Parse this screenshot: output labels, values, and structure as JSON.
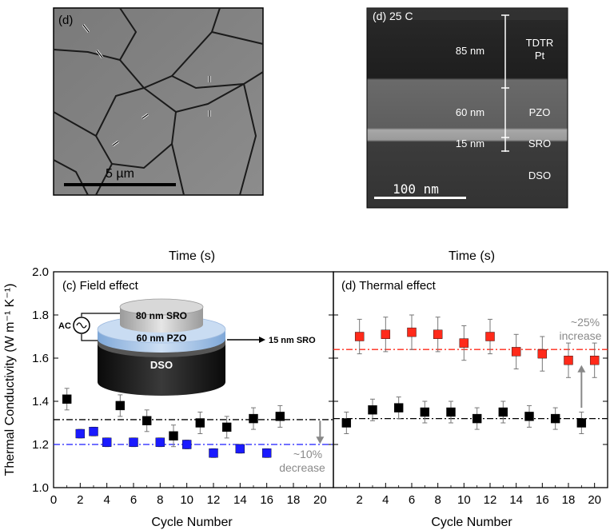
{
  "sem_left": {
    "panel_label": "(d)",
    "scale_bar_label": "5 µm"
  },
  "sem_right": {
    "panel_label": "(d) 25 C",
    "scale_bar_label": "100 nm",
    "layers": [
      {
        "thickness": "85 nm",
        "name_line1": "TDTR",
        "name_line2": "Pt"
      },
      {
        "thickness": "60 nm",
        "name_line1": "PZO",
        "name_line2": ""
      },
      {
        "thickness": "15 nm",
        "name_line1": "SRO",
        "name_line2": ""
      },
      {
        "thickness": "",
        "name_line1": "DSO",
        "name_line2": ""
      }
    ]
  },
  "inset": {
    "top_cap": "80 nm SRO",
    "middle_layer": "60 nm PZO",
    "side_label": "15 nm SRO",
    "substrate": "DSO",
    "source": "AC"
  },
  "chart_data": [
    {
      "type": "scatter",
      "panel_label": "(c) Field effect",
      "top_axis_label": "Time (s)",
      "xlabel": "Cycle Number",
      "ylabel": "Thermal Conductivity (W m⁻¹ K⁻¹)",
      "xlim": [
        0,
        21
      ],
      "ylim": [
        1.0,
        2.0
      ],
      "xticks": [
        0,
        2,
        4,
        6,
        8,
        10,
        12,
        14,
        16,
        18,
        20
      ],
      "yticks": [
        1.0,
        1.2,
        1.4,
        1.6,
        1.8,
        2.0
      ],
      "ytick_labels": [
        "1.0",
        "1.2",
        "1.4",
        "1.6",
        "1.8",
        "2.0"
      ],
      "series": [
        {
          "color": "#000000",
          "x": [
            1,
            5,
            7,
            9,
            11,
            13,
            15,
            17
          ],
          "y": [
            1.41,
            1.38,
            1.31,
            1.24,
            1.3,
            1.28,
            1.32,
            1.33
          ],
          "err": [
            0.05,
            0.05,
            0.05,
            0.05,
            0.05,
            0.05,
            0.05,
            0.05
          ]
        },
        {
          "color": "#1a1aff",
          "x": [
            2,
            3,
            4,
            6,
            8,
            10,
            12,
            14,
            16
          ],
          "y": [
            1.25,
            1.26,
            1.21,
            1.21,
            1.21,
            1.2,
            1.16,
            1.18,
            1.16
          ],
          "err": [
            0.02,
            0.02,
            0.02,
            0.02,
            0.02,
            0.02,
            0.02,
            0.02,
            0.02
          ]
        }
      ],
      "reference_lines": [
        {
          "y": 1.315,
          "color": "#000000"
        },
        {
          "y": 1.2,
          "color": "#1a1aff"
        }
      ],
      "annotation_line1": "~10%",
      "annotation_line2": "decrease",
      "arrow": {
        "x": 20,
        "from": 1.31,
        "to": 1.21,
        "color": "#888888"
      }
    },
    {
      "type": "scatter",
      "panel_label": "(d) Thermal effect",
      "top_axis_label": "Time (s)",
      "xlabel": "Cycle Number",
      "xlim": [
        0,
        21
      ],
      "ylim": [
        1.0,
        2.0
      ],
      "xticks": [
        2,
        4,
        6,
        8,
        10,
        12,
        14,
        16,
        18,
        20
      ],
      "series": [
        {
          "color": "#000000",
          "x": [
            1,
            3,
            5,
            7,
            9,
            11,
            13,
            15,
            17,
            19
          ],
          "y": [
            1.3,
            1.36,
            1.37,
            1.35,
            1.35,
            1.32,
            1.35,
            1.33,
            1.32,
            1.3
          ],
          "err": [
            0.05,
            0.05,
            0.05,
            0.05,
            0.05,
            0.05,
            0.05,
            0.05,
            0.05,
            0.05
          ]
        },
        {
          "color": "#ff2a1a",
          "x": [
            2,
            4,
            6,
            8,
            10,
            12,
            14,
            16,
            18,
            20
          ],
          "y": [
            1.7,
            1.71,
            1.72,
            1.71,
            1.67,
            1.7,
            1.63,
            1.62,
            1.59,
            1.59
          ],
          "err": [
            0.08,
            0.08,
            0.08,
            0.08,
            0.08,
            0.08,
            0.08,
            0.08,
            0.08,
            0.08
          ]
        }
      ],
      "reference_lines": [
        {
          "y": 1.32,
          "color": "#000000"
        },
        {
          "y": 1.64,
          "color": "#ff2a1a"
        }
      ],
      "annotation_line1": "~25%",
      "annotation_line2": "increase",
      "arrow": {
        "x": 19,
        "from": 1.37,
        "to": 1.56,
        "color": "#888888"
      }
    }
  ]
}
